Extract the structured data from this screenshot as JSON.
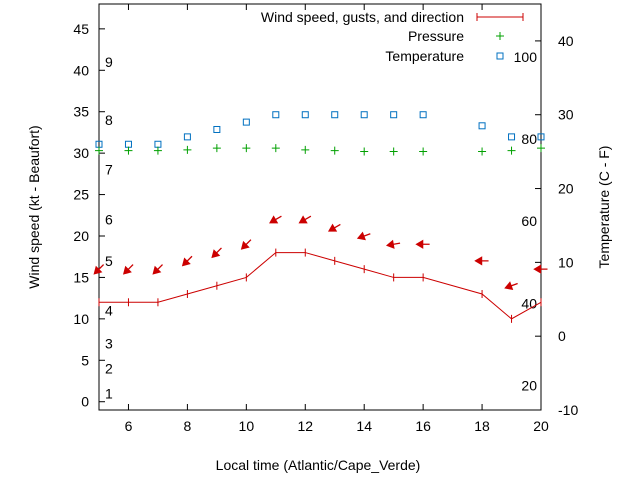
{
  "chart_data": {
    "type": "line",
    "xlabel": "Local time (Atlantic/Cape_Verde)",
    "ylabel": "Wind speed (kt - Beaufort)",
    "y2label": "Temperature (C - F)",
    "xlim": [
      5,
      20
    ],
    "ylim": [
      -1,
      48
    ],
    "y2lim": [
      -10,
      45
    ],
    "x_ticks": [
      6,
      8,
      10,
      12,
      14,
      16,
      18,
      20
    ],
    "y_ticks": [
      0,
      5,
      10,
      15,
      20,
      25,
      30,
      35,
      40,
      45
    ],
    "y2_ticks": [
      -10,
      0,
      10,
      20,
      30,
      40
    ],
    "beaufort_scale": [
      {
        "label": "1",
        "kt": 1
      },
      {
        "label": "2",
        "kt": 4
      },
      {
        "label": "3",
        "kt": 7
      },
      {
        "label": "4",
        "kt": 11
      },
      {
        "label": "5",
        "kt": 17
      },
      {
        "label": "6",
        "kt": 22
      },
      {
        "label": "7",
        "kt": 28
      },
      {
        "label": "8",
        "kt": 34
      },
      {
        "label": "9",
        "kt": 41
      }
    ],
    "fahrenheit_scale": [
      {
        "label": "20",
        "c": -6.7
      },
      {
        "label": "40",
        "c": 4.4
      },
      {
        "label": "60",
        "c": 15.6
      },
      {
        "label": "80",
        "c": 26.7
      },
      {
        "label": "100",
        "c": 37.8
      }
    ],
    "legend_position": "top-right",
    "colors": {
      "wind": "#cc0000",
      "pressure": "#00a000",
      "temperature": "#0070c0",
      "axis": "#000000"
    },
    "series": [
      {
        "name": "Wind speed, gusts, and direction",
        "x": [
          5,
          6,
          7,
          8,
          9,
          10,
          11,
          12,
          13,
          14,
          15,
          16,
          18,
          19,
          20
        ],
        "values": [
          12,
          12,
          12,
          13,
          14,
          15,
          18,
          18,
          17,
          16,
          15,
          15,
          13,
          10,
          12
        ],
        "direction_deg": [
          45,
          45,
          45,
          45,
          45,
          45,
          60,
          60,
          60,
          70,
          80,
          90,
          90,
          70,
          90
        ]
      },
      {
        "name": "Pressure",
        "x": [
          5,
          6,
          7,
          8,
          9,
          10,
          11,
          12,
          13,
          14,
          15,
          16,
          18,
          19,
          20
        ],
        "values": [
          30.3,
          30.3,
          30.3,
          30.4,
          30.6,
          30.6,
          30.6,
          30.4,
          30.3,
          30.2,
          30.2,
          30.2,
          30.2,
          30.3,
          30.6
        ]
      },
      {
        "name": "Temperature",
        "x": [
          5,
          6,
          7,
          8,
          9,
          10,
          11,
          12,
          13,
          14,
          15,
          16,
          18,
          19,
          20
        ],
        "values": [
          26,
          26,
          26,
          27,
          28,
          29,
          30,
          30,
          30,
          30,
          30,
          30,
          28.5,
          27,
          27
        ]
      }
    ]
  }
}
